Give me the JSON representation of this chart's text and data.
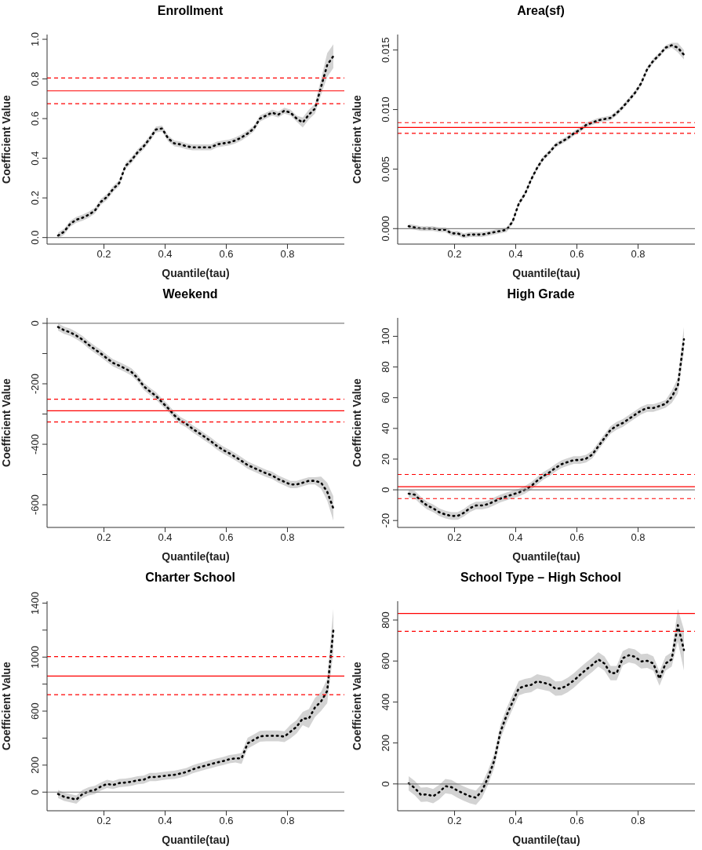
{
  "chart_data": [
    {
      "type": "line",
      "title": "Enrollment",
      "xlabel": "Quantile(tau)",
      "ylabel": "Coefficient Value",
      "line_style": "dotted",
      "xlim": [
        0.014,
        0.986
      ],
      "xticks": [
        0.2,
        0.4,
        0.6,
        0.8
      ],
      "ylim": [
        -0.033,
        1.024
      ],
      "yticks": [
        {
          "value": 0,
          "label": "0.0"
        },
        {
          "value": 0.2,
          "label": "0.2"
        },
        {
          "value": 0.4,
          "label": "0.4"
        },
        {
          "value": 0.6,
          "label": "0.6"
        },
        {
          "value": 0.8,
          "label": "0.8"
        },
        {
          "value": 1,
          "label": "1.0"
        }
      ],
      "x": [
        0.05,
        0.07,
        0.09,
        0.11,
        0.13,
        0.15,
        0.17,
        0.19,
        0.21,
        0.23,
        0.25,
        0.27,
        0.29,
        0.31,
        0.33,
        0.35,
        0.37,
        0.39,
        0.41,
        0.43,
        0.45,
        0.47,
        0.49,
        0.51,
        0.53,
        0.55,
        0.57,
        0.59,
        0.61,
        0.63,
        0.65,
        0.67,
        0.69,
        0.71,
        0.73,
        0.75,
        0.77,
        0.79,
        0.81,
        0.83,
        0.85,
        0.87,
        0.89,
        0.91,
        0.93,
        0.95
      ],
      "series": [
        {
          "color": "#000000",
          "values": [
            0.01,
            0.03,
            0.07,
            0.09,
            0.1,
            0.115,
            0.135,
            0.18,
            0.205,
            0.245,
            0.275,
            0.36,
            0.39,
            0.43,
            0.46,
            0.5,
            0.545,
            0.55,
            0.5,
            0.475,
            0.47,
            0.46,
            0.455,
            0.455,
            0.455,
            0.455,
            0.47,
            0.475,
            0.48,
            0.49,
            0.505,
            0.525,
            0.55,
            0.6,
            0.615,
            0.63,
            0.62,
            0.64,
            0.63,
            0.6,
            0.58,
            0.62,
            0.65,
            0.76,
            0.87,
            0.915
          ],
          "lower": [
            -0.005,
            0.015,
            0.055,
            0.075,
            0.085,
            0.1,
            0.12,
            0.165,
            0.19,
            0.23,
            0.26,
            0.345,
            0.375,
            0.415,
            0.445,
            0.485,
            0.53,
            0.535,
            0.485,
            0.46,
            0.455,
            0.445,
            0.44,
            0.44,
            0.44,
            0.44,
            0.455,
            0.46,
            0.465,
            0.475,
            0.49,
            0.51,
            0.535,
            0.585,
            0.6,
            0.615,
            0.605,
            0.625,
            0.615,
            0.585,
            0.555,
            0.595,
            0.625,
            0.72,
            0.81,
            0.855
          ],
          "upper": [
            0.025,
            0.045,
            0.085,
            0.105,
            0.115,
            0.13,
            0.15,
            0.195,
            0.22,
            0.26,
            0.29,
            0.375,
            0.405,
            0.445,
            0.475,
            0.515,
            0.56,
            0.565,
            0.515,
            0.49,
            0.485,
            0.475,
            0.47,
            0.47,
            0.47,
            0.47,
            0.485,
            0.49,
            0.495,
            0.505,
            0.52,
            0.54,
            0.565,
            0.615,
            0.63,
            0.645,
            0.635,
            0.655,
            0.645,
            0.615,
            0.605,
            0.645,
            0.675,
            0.8,
            0.93,
            0.975
          ]
        }
      ],
      "ref_lines": [
        {
          "axis": "y",
          "value": 0,
          "color": "#808080"
        },
        {
          "axis": "y",
          "value": 0.74,
          "color": "#ff0000"
        },
        {
          "axis": "y",
          "value": 0.805,
          "color": "#ff0000",
          "line_style": "dashed"
        },
        {
          "axis": "y",
          "value": 0.675,
          "color": "#ff0000",
          "line_style": "dashed"
        }
      ]
    },
    {
      "type": "line",
      "title": "Area(sf)",
      "xlabel": "Quantile(tau)",
      "ylabel": "Coefficient Value",
      "line_style": "dotted",
      "xlim": [
        0.014,
        0.986
      ],
      "xticks": [
        0.2,
        0.4,
        0.6,
        0.8
      ],
      "ylim": [
        -0.0013,
        0.0163
      ],
      "yticks": [
        {
          "value": 0,
          "label": "0.000"
        },
        {
          "value": 0.005,
          "label": "0.005"
        },
        {
          "value": 0.01,
          "label": "0.010"
        },
        {
          "value": 0.015,
          "label": "0.015"
        }
      ],
      "x": [
        0.05,
        0.07,
        0.09,
        0.11,
        0.13,
        0.15,
        0.17,
        0.19,
        0.21,
        0.23,
        0.25,
        0.27,
        0.29,
        0.31,
        0.33,
        0.35,
        0.37,
        0.39,
        0.41,
        0.43,
        0.45,
        0.47,
        0.49,
        0.51,
        0.53,
        0.55,
        0.57,
        0.59,
        0.61,
        0.63,
        0.65,
        0.67,
        0.69,
        0.71,
        0.73,
        0.75,
        0.77,
        0.79,
        0.81,
        0.83,
        0.85,
        0.87,
        0.89,
        0.91,
        0.93,
        0.95
      ],
      "series": [
        {
          "color": "#000000",
          "values": [
            0.0002,
            0.0001,
            0,
            0,
            0,
            -0.0001,
            -0.0001,
            -0.0004,
            -0.0004,
            -0.0006,
            -0.0005,
            -0.0005,
            -0.0005,
            -0.0004,
            -0.0003,
            -0.0002,
            -0.0001,
            0.0006,
            0.0021,
            0.0029,
            0.0041,
            0.0051,
            0.0059,
            0.0064,
            0.007,
            0.0073,
            0.0076,
            0.008,
            0.0083,
            0.0087,
            0.0089,
            0.0091,
            0.0092,
            0.0093,
            0.0097,
            0.0102,
            0.0108,
            0.0114,
            0.0122,
            0.0134,
            0.0141,
            0.0146,
            0.0152,
            0.0154,
            0.0152,
            0.0146
          ],
          "lower": [
            0,
            -0.0001,
            -0.0002,
            -0.0002,
            -0.0002,
            -0.0003,
            -0.0003,
            -0.0006,
            -0.0006,
            -0.0008,
            -0.0007,
            -0.0007,
            -0.0007,
            -0.0006,
            -0.0005,
            -0.0004,
            -0.0003,
            0.0004,
            0.0019,
            0.0027,
            0.0039,
            0.0049,
            0.0057,
            0.0062,
            0.0068,
            0.0071,
            0.0074,
            0.0078,
            0.0081,
            0.0085,
            0.0087,
            0.0089,
            0.009,
            0.0091,
            0.0095,
            0.01,
            0.0106,
            0.0112,
            0.012,
            0.0132,
            0.0139,
            0.0144,
            0.015,
            0.0152,
            0.0148,
            0.0142
          ],
          "upper": [
            0.0004,
            0.0003,
            0.0002,
            0.0002,
            0.0002,
            0.0001,
            0.0001,
            -0.0002,
            -0.0002,
            -0.0004,
            -0.0003,
            -0.0003,
            -0.0003,
            -0.0002,
            -0.0001,
            0,
            0.0001,
            0.0008,
            0.0023,
            0.0031,
            0.0043,
            0.0053,
            0.0061,
            0.0066,
            0.0072,
            0.0075,
            0.0078,
            0.0082,
            0.0085,
            0.0089,
            0.0091,
            0.0093,
            0.0094,
            0.0095,
            0.0099,
            0.0104,
            0.011,
            0.0116,
            0.0124,
            0.0136,
            0.0143,
            0.0148,
            0.0154,
            0.0156,
            0.0156,
            0.015
          ]
        }
      ],
      "ref_lines": [
        {
          "axis": "y",
          "value": 0,
          "color": "#808080"
        },
        {
          "axis": "y",
          "value": 0.0085,
          "color": "#ff0000"
        },
        {
          "axis": "y",
          "value": 0.0089,
          "color": "#ff0000",
          "line_style": "dashed"
        },
        {
          "axis": "y",
          "value": 0.008,
          "color": "#ff0000",
          "line_style": "dashed"
        }
      ]
    },
    {
      "type": "line",
      "title": "Weekend",
      "xlabel": "Quantile(tau)",
      "ylabel": "Coefficient Value",
      "line_style": "dotted",
      "xlim": [
        0.014,
        0.986
      ],
      "xticks": [
        0.2,
        0.4,
        0.6,
        0.8
      ],
      "ylim": [
        -675,
        18
      ],
      "yticks": [
        0,
        {
          "value": -100,
          "label": null
        },
        -200,
        {
          "value": -300,
          "label": null
        },
        -400,
        {
          "value": -500,
          "label": null
        },
        -600
      ],
      "x": [
        0.05,
        0.07,
        0.09,
        0.11,
        0.13,
        0.15,
        0.17,
        0.19,
        0.21,
        0.23,
        0.25,
        0.27,
        0.29,
        0.31,
        0.33,
        0.35,
        0.37,
        0.39,
        0.41,
        0.43,
        0.45,
        0.47,
        0.49,
        0.51,
        0.53,
        0.55,
        0.57,
        0.59,
        0.61,
        0.63,
        0.65,
        0.67,
        0.69,
        0.71,
        0.73,
        0.75,
        0.77,
        0.79,
        0.81,
        0.83,
        0.85,
        0.87,
        0.89,
        0.91,
        0.93,
        0.95
      ],
      "series": [
        {
          "color": "#000000",
          "values": [
            -12,
            -23,
            -30,
            -41,
            -54,
            -71,
            -86,
            -100,
            -116,
            -131,
            -140,
            -150,
            -161,
            -181,
            -208,
            -225,
            -240,
            -261,
            -281,
            -304,
            -322,
            -333,
            -349,
            -362,
            -376,
            -390,
            -406,
            -419,
            -430,
            -442,
            -455,
            -469,
            -478,
            -487,
            -496,
            -503,
            -515,
            -524,
            -533,
            -533,
            -527,
            -521,
            -521,
            -527,
            -557,
            -612
          ],
          "lower": [
            -24,
            -35,
            -42,
            -53,
            -66,
            -83,
            -98,
            -112,
            -128,
            -143,
            -152,
            -162,
            -173,
            -193,
            -220,
            -237,
            -252,
            -273,
            -293,
            -316,
            -334,
            -345,
            -361,
            -374,
            -388,
            -402,
            -418,
            -431,
            -442,
            -454,
            -467,
            -481,
            -490,
            -499,
            -508,
            -515,
            -527,
            -536,
            -545,
            -545,
            -539,
            -533,
            -533,
            -547,
            -587,
            -652
          ],
          "upper": [
            0,
            -11,
            -18,
            -29,
            -42,
            -59,
            -74,
            -88,
            -104,
            -119,
            -128,
            -138,
            -149,
            -169,
            -196,
            -213,
            -228,
            -249,
            -269,
            -292,
            -310,
            -321,
            -337,
            -350,
            -364,
            -378,
            -394,
            -407,
            -418,
            -430,
            -443,
            -457,
            -466,
            -475,
            -484,
            -491,
            -503,
            -512,
            -521,
            -521,
            -515,
            -509,
            -509,
            -507,
            -527,
            -572
          ]
        }
      ],
      "ref_lines": [
        {
          "axis": "y",
          "value": 0,
          "color": "#808080"
        },
        {
          "axis": "y",
          "value": -289,
          "color": "#ff0000"
        },
        {
          "axis": "y",
          "value": -251,
          "color": "#ff0000",
          "line_style": "dashed"
        },
        {
          "axis": "y",
          "value": -326,
          "color": "#ff0000",
          "line_style": "dashed"
        }
      ]
    },
    {
      "type": "line",
      "title": "High Grade",
      "xlabel": "Quantile(tau)",
      "ylabel": "Coefficient Value",
      "line_style": "dotted",
      "xlim": [
        0.014,
        0.986
      ],
      "xticks": [
        0.2,
        0.4,
        0.6,
        0.8
      ],
      "ylim": [
        -24.5,
        112
      ],
      "yticks": [
        -20,
        0,
        20,
        40,
        60,
        80,
        100
      ],
      "x": [
        0.05,
        0.07,
        0.09,
        0.11,
        0.13,
        0.15,
        0.17,
        0.19,
        0.21,
        0.23,
        0.25,
        0.27,
        0.29,
        0.31,
        0.33,
        0.35,
        0.37,
        0.39,
        0.41,
        0.43,
        0.45,
        0.47,
        0.49,
        0.51,
        0.53,
        0.55,
        0.57,
        0.59,
        0.61,
        0.63,
        0.65,
        0.67,
        0.69,
        0.71,
        0.73,
        0.75,
        0.77,
        0.79,
        0.81,
        0.83,
        0.85,
        0.87,
        0.89,
        0.91,
        0.93,
        0.95
      ],
      "series": [
        {
          "color": "#000000",
          "values": [
            -2.5,
            -3.2,
            -7.1,
            -10.2,
            -12,
            -14.6,
            -16.1,
            -17,
            -17,
            -15,
            -12,
            -10.2,
            -10.2,
            -9.3,
            -7.5,
            -5.7,
            -4.3,
            -3,
            -1.8,
            0,
            2.4,
            5.9,
            9,
            11.3,
            14.3,
            16.7,
            18.1,
            19.4,
            19.4,
            20.3,
            22.9,
            28.3,
            33.7,
            39,
            41.7,
            43.5,
            46.2,
            48.9,
            51.6,
            53.3,
            53.3,
            54.6,
            56,
            60.5,
            67.7,
            98
          ],
          "lower": [
            -5,
            -5.7,
            -9.6,
            -12.7,
            -14.5,
            -17.1,
            -18.6,
            -19.5,
            -19.5,
            -17.5,
            -14.5,
            -12.7,
            -12.7,
            -11.8,
            -10,
            -8.2,
            -6.8,
            -5.5,
            -4.3,
            -2.5,
            -0.1,
            3.4,
            6.5,
            8.8,
            11.8,
            14.2,
            15.6,
            16.9,
            16.9,
            17.8,
            20.4,
            25.8,
            31.2,
            36.5,
            39.2,
            41,
            43.7,
            46.4,
            49.1,
            50.8,
            50.8,
            52.1,
            53.5,
            56.5,
            62.7,
            90
          ],
          "upper": [
            0,
            -0.7,
            -4.6,
            -7.7,
            -9.5,
            -12.1,
            -13.6,
            -14.5,
            -14.5,
            -12.5,
            -9.5,
            -7.7,
            -7.7,
            -6.8,
            -5,
            -3.2,
            -1.8,
            -0.5,
            0.7,
            2.5,
            4.9,
            8.4,
            11.5,
            13.8,
            16.8,
            19.2,
            20.6,
            21.9,
            21.9,
            22.8,
            25.4,
            30.8,
            36.2,
            41.5,
            44.2,
            46,
            48.7,
            51.4,
            54.1,
            55.8,
            55.8,
            57.1,
            58.5,
            64.5,
            72.7,
            106
          ]
        }
      ],
      "ref_lines": [
        {
          "axis": "y",
          "value": 0,
          "color": "#808080"
        },
        {
          "axis": "y",
          "value": 2,
          "color": "#ff0000"
        },
        {
          "axis": "y",
          "value": 10,
          "color": "#ff0000",
          "line_style": "dashed"
        },
        {
          "axis": "y",
          "value": -5.7,
          "color": "#ff0000",
          "line_style": "dashed"
        }
      ]
    },
    {
      "type": "line",
      "title": "Charter School",
      "xlabel": "Quantile(tau)",
      "ylabel": "Coefficient Value",
      "line_style": "dotted",
      "xlim": [
        0.014,
        0.986
      ],
      "xticks": [
        0.2,
        0.4,
        0.6,
        0.8
      ],
      "ylim": [
        -138,
        1414
      ],
      "yticks": [
        0,
        200,
        {
          "value": 400,
          "label": null
        },
        600,
        {
          "value": 800,
          "label": null
        },
        1000,
        {
          "value": 1200,
          "label": null
        },
        1400
      ],
      "x": [
        0.05,
        0.07,
        0.09,
        0.11,
        0.13,
        0.15,
        0.17,
        0.19,
        0.21,
        0.23,
        0.25,
        0.27,
        0.29,
        0.31,
        0.33,
        0.35,
        0.37,
        0.39,
        0.41,
        0.43,
        0.45,
        0.47,
        0.49,
        0.51,
        0.53,
        0.55,
        0.57,
        0.59,
        0.61,
        0.63,
        0.65,
        0.67,
        0.69,
        0.71,
        0.73,
        0.75,
        0.77,
        0.79,
        0.81,
        0.83,
        0.85,
        0.87,
        0.89,
        0.91,
        0.93,
        0.95
      ],
      "series": [
        {
          "color": "#000000",
          "values": [
            -14,
            -35,
            -45,
            -55,
            -14,
            6,
            16,
            41,
            61,
            53,
            67,
            71,
            77,
            88,
            92,
            112,
            112,
            118,
            124,
            128,
            138,
            149,
            169,
            183,
            195,
            208,
            220,
            230,
            244,
            250,
            250,
            362,
            387,
            413,
            417,
            417,
            417,
            411,
            448,
            484,
            545,
            545,
            627,
            672,
            749,
            1197
          ],
          "lower": [
            -44,
            -65,
            -75,
            -85,
            -44,
            -24,
            -14,
            11,
            31,
            23,
            37,
            41,
            47,
            58,
            62,
            82,
            82,
            88,
            94,
            98,
            108,
            119,
            139,
            153,
            165,
            178,
            190,
            200,
            214,
            220,
            210,
            322,
            347,
            373,
            377,
            377,
            377,
            371,
            398,
            434,
            495,
            475,
            557,
            602,
            659,
            1037
          ],
          "upper": [
            16,
            -5,
            -15,
            -25,
            16,
            36,
            46,
            71,
            91,
            83,
            97,
            101,
            107,
            118,
            122,
            142,
            142,
            148,
            154,
            158,
            168,
            179,
            199,
            213,
            225,
            238,
            250,
            260,
            274,
            280,
            290,
            402,
            427,
            453,
            457,
            457,
            457,
            451,
            498,
            534,
            595,
            615,
            697,
            742,
            839,
            1357
          ]
        }
      ],
      "ref_lines": [
        {
          "axis": "y",
          "value": 0,
          "color": "#808080"
        },
        {
          "axis": "y",
          "value": 860,
          "color": "#ff0000"
        },
        {
          "axis": "y",
          "value": 1003,
          "color": "#ff0000",
          "line_style": "dashed"
        },
        {
          "axis": "y",
          "value": 722,
          "color": "#ff0000",
          "line_style": "dashed"
        }
      ]
    },
    {
      "type": "line",
      "title": "School Type – High School",
      "xlabel": "Quantile(tau)",
      "ylabel": "Coefficient Value",
      "line_style": "dotted",
      "xlim": [
        0.014,
        0.986
      ],
      "xticks": [
        0.2,
        0.4,
        0.6,
        0.8
      ],
      "ylim": [
        -131,
        892
      ],
      "yticks": [
        0,
        200,
        400,
        600,
        800
      ],
      "x": [
        0.05,
        0.07,
        0.09,
        0.11,
        0.13,
        0.15,
        0.17,
        0.19,
        0.21,
        0.23,
        0.25,
        0.27,
        0.29,
        0.31,
        0.33,
        0.35,
        0.37,
        0.39,
        0.41,
        0.43,
        0.45,
        0.47,
        0.49,
        0.51,
        0.53,
        0.55,
        0.57,
        0.59,
        0.61,
        0.63,
        0.65,
        0.67,
        0.69,
        0.71,
        0.73,
        0.75,
        0.77,
        0.79,
        0.81,
        0.83,
        0.85,
        0.87,
        0.89,
        0.91,
        0.93,
        0.95
      ],
      "series": [
        {
          "color": "#000000",
          "values": [
            3,
            -20,
            -53,
            -51,
            -60,
            -40,
            -11,
            -16,
            -33,
            -47,
            -60,
            -67,
            -33,
            33,
            114,
            254,
            334,
            401,
            467,
            478,
            483,
            501,
            494,
            487,
            465,
            467,
            483,
            505,
            532,
            558,
            581,
            608,
            588,
            541,
            541,
            614,
            628,
            621,
            598,
            601,
            588,
            514,
            588,
            608,
            775,
            654
          ],
          "lower": [
            -32,
            -55,
            -88,
            -86,
            -95,
            -75,
            -46,
            -51,
            -68,
            -82,
            -95,
            -102,
            -68,
            -2,
            79,
            219,
            299,
            366,
            432,
            443,
            448,
            466,
            459,
            452,
            430,
            432,
            448,
            470,
            497,
            523,
            546,
            573,
            553,
            506,
            506,
            579,
            593,
            586,
            563,
            566,
            553,
            479,
            553,
            573,
            695,
            554
          ],
          "upper": [
            38,
            15,
            -18,
            -16,
            -25,
            -5,
            24,
            19,
            2,
            -12,
            -25,
            -32,
            2,
            68,
            149,
            289,
            369,
            436,
            502,
            513,
            518,
            536,
            529,
            522,
            500,
            502,
            518,
            540,
            567,
            593,
            616,
            643,
            623,
            576,
            576,
            649,
            663,
            656,
            633,
            636,
            623,
            549,
            623,
            643,
            855,
            754
          ]
        }
      ],
      "ref_lines": [
        {
          "axis": "y",
          "value": 0,
          "color": "#808080"
        },
        {
          "axis": "y",
          "value": 832,
          "color": "#ff0000"
        },
        {
          "axis": "y",
          "value": 745,
          "color": "#ff0000",
          "line_style": "dashed"
        }
      ]
    }
  ]
}
